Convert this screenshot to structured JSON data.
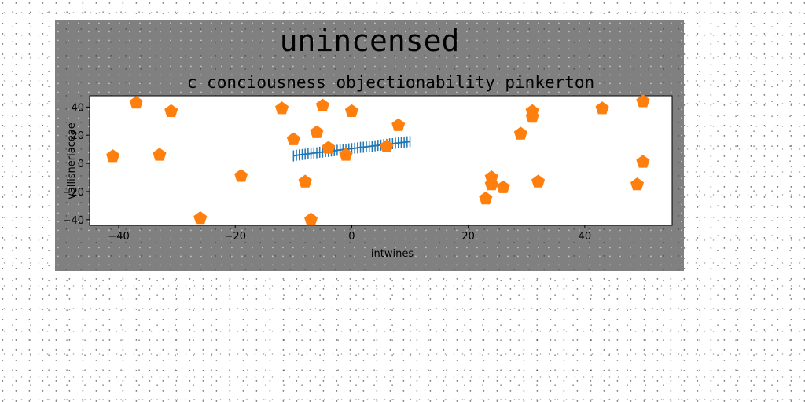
{
  "figure": {
    "suptitle": "unincensed",
    "background": "#808080"
  },
  "chart_data": {
    "type": "scatter",
    "title": "c conciousness objectionability pinkerton",
    "xlabel": "intwines",
    "ylabel": "vallisneriaceae",
    "xlim": [
      -45,
      55
    ],
    "ylim": [
      -44,
      48
    ],
    "xticks": [
      -40,
      -20,
      0,
      20,
      40
    ],
    "yticks": [
      -40,
      -20,
      0,
      20,
      40
    ],
    "grid": false,
    "legend": false,
    "series": [
      {
        "marker": "vertical-line",
        "color": "#1f77b4",
        "x": [
          -10.0,
          -9.5,
          -9.0,
          -8.5,
          -8.0,
          -7.5,
          -7.0,
          -6.5,
          -6.0,
          -5.5,
          -5.0,
          -4.5,
          -4.0,
          -3.5,
          -3.0,
          -2.5,
          -2.0,
          -1.5,
          -1.0,
          -0.5,
          0.0,
          0.5,
          1.0,
          1.5,
          2.0,
          2.5,
          3.0,
          3.5,
          4.0,
          4.5,
          5.0,
          5.5,
          6.0,
          6.5,
          7.0,
          7.5,
          8.0,
          8.5,
          9.0,
          9.5,
          10.0
        ],
        "y": [
          5.3,
          5.8,
          6.0,
          6.3,
          6.5,
          6.8,
          7.0,
          7.4,
          7.5,
          7.9,
          8.0,
          8.4,
          8.5,
          8.8,
          9.0,
          9.3,
          9.5,
          9.9,
          10.0,
          10.3,
          10.5,
          10.8,
          11.0,
          11.4,
          11.5,
          11.8,
          12.0,
          12.3,
          12.5,
          12.8,
          13.0,
          13.4,
          13.5,
          13.9,
          14.0,
          14.3,
          14.5,
          14.8,
          15.0,
          15.3,
          15.5
        ]
      },
      {
        "marker": "pentagon",
        "color": "#ff7f0e",
        "x": [
          -41,
          -37,
          -33,
          -31,
          -26,
          -19,
          -12,
          -10,
          -8,
          -7,
          -6,
          -5,
          -4,
          -1,
          0,
          6,
          8,
          23,
          24,
          24,
          26,
          29,
          31,
          31,
          32,
          43,
          49,
          50,
          50
        ],
        "y": [
          5,
          43,
          6,
          37,
          -39,
          -9,
          39,
          17,
          -13,
          -40,
          22,
          41,
          11,
          6,
          37,
          12,
          27,
          -25,
          -10,
          -15,
          -17,
          21,
          37,
          33,
          -13,
          39,
          -15,
          1,
          44
        ]
      }
    ]
  }
}
